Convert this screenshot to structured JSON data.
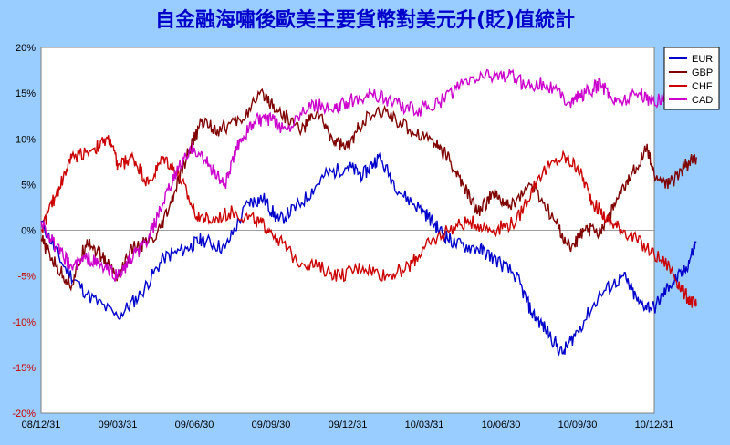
{
  "chart_data": {
    "type": "line",
    "title": "自金融海嘯後歐美主要貨幣對美元升(貶)值統計",
    "xlabel": "",
    "ylabel": "",
    "x_ticks": [
      "08/12/31",
      "09/03/31",
      "09/06/30",
      "09/09/30",
      "09/12/31",
      "10/03/31",
      "10/06/30",
      "10/09/30",
      "10/12/31"
    ],
    "y_ticks": [
      "20%",
      "15%",
      "10%",
      "5%",
      "0%",
      "-5%",
      "-10%",
      "-15%",
      "-20%"
    ],
    "ylim": [
      -20,
      20
    ],
    "grid": "horizontal-zero-line",
    "legend_position": "top-right",
    "series": [
      {
        "name": "EUR",
        "color": "#0000cc",
        "points": [
          [
            0,
            1
          ],
          [
            0.3,
            -4
          ],
          [
            0.6,
            -7
          ],
          [
            1.0,
            -9.5
          ],
          [
            1.3,
            -7
          ],
          [
            1.6,
            -3
          ],
          [
            1.9,
            -2
          ],
          [
            2.1,
            -1
          ],
          [
            2.4,
            -2
          ],
          [
            2.7,
            3
          ],
          [
            2.9,
            3.5
          ],
          [
            3.1,
            1
          ],
          [
            3.4,
            3
          ],
          [
            3.7,
            6
          ],
          [
            4.0,
            7
          ],
          [
            4.2,
            6
          ],
          [
            4.4,
            8
          ],
          [
            4.7,
            4
          ],
          [
            5.0,
            2
          ],
          [
            5.2,
            0
          ],
          [
            5.4,
            -1.5
          ],
          [
            5.7,
            -2
          ],
          [
            5.9,
            -3
          ],
          [
            6.2,
            -5
          ],
          [
            6.4,
            -9
          ],
          [
            6.6,
            -11
          ],
          [
            6.8,
            -13.5
          ],
          [
            7.0,
            -11
          ],
          [
            7.3,
            -7
          ],
          [
            7.6,
            -5
          ],
          [
            7.8,
            -8
          ],
          [
            8.0,
            -8.5
          ],
          [
            8.2,
            -6
          ],
          [
            8.4,
            -4.5
          ],
          [
            8.55,
            -1.3
          ]
        ]
      },
      {
        "name": "GBP",
        "color": "#800000",
        "points": [
          [
            0,
            -1
          ],
          [
            0.2,
            -4
          ],
          [
            0.4,
            -6
          ],
          [
            0.6,
            -1
          ],
          [
            0.8,
            -3
          ],
          [
            1.0,
            -5
          ],
          [
            1.2,
            -2
          ],
          [
            1.5,
            -1
          ],
          [
            1.7,
            3
          ],
          [
            1.9,
            8
          ],
          [
            2.1,
            12
          ],
          [
            2.3,
            11
          ],
          [
            2.6,
            12
          ],
          [
            2.9,
            15
          ],
          [
            3.1,
            13
          ],
          [
            3.4,
            11
          ],
          [
            3.6,
            13
          ],
          [
            3.8,
            10
          ],
          [
            4.0,
            9
          ],
          [
            4.2,
            12
          ],
          [
            4.5,
            13
          ],
          [
            4.8,
            11
          ],
          [
            5.1,
            10
          ],
          [
            5.3,
            8
          ],
          [
            5.5,
            5
          ],
          [
            5.7,
            2
          ],
          [
            5.9,
            4
          ],
          [
            6.1,
            2.5
          ],
          [
            6.4,
            5
          ],
          [
            6.7,
            1
          ],
          [
            6.9,
            -2
          ],
          [
            7.1,
            0
          ],
          [
            7.3,
            0
          ],
          [
            7.5,
            3
          ],
          [
            7.7,
            6
          ],
          [
            7.9,
            9
          ],
          [
            8.0,
            6
          ],
          [
            8.2,
            5
          ],
          [
            8.4,
            7
          ],
          [
            8.55,
            8
          ]
        ]
      },
      {
        "name": "CHF",
        "color": "#cc0000",
        "points": [
          [
            0,
            0
          ],
          [
            0.2,
            4
          ],
          [
            0.4,
            8
          ],
          [
            0.7,
            9
          ],
          [
            0.9,
            10
          ],
          [
            1.0,
            7
          ],
          [
            1.2,
            8
          ],
          [
            1.4,
            5
          ],
          [
            1.6,
            8
          ],
          [
            1.8,
            6
          ],
          [
            2.0,
            2
          ],
          [
            2.2,
            1
          ],
          [
            2.5,
            2
          ],
          [
            2.8,
            1
          ],
          [
            3.0,
            0
          ],
          [
            3.3,
            -3
          ],
          [
            3.6,
            -4
          ],
          [
            3.9,
            -5
          ],
          [
            4.2,
            -4
          ],
          [
            4.5,
            -5
          ],
          [
            4.8,
            -4
          ],
          [
            5.0,
            -2
          ],
          [
            5.3,
            0
          ],
          [
            5.6,
            1
          ],
          [
            5.9,
            0
          ],
          [
            6.2,
            1
          ],
          [
            6.5,
            6
          ],
          [
            6.8,
            8
          ],
          [
            7.0,
            7
          ],
          [
            7.2,
            3
          ],
          [
            7.4,
            1
          ],
          [
            7.6,
            0
          ],
          [
            7.9,
            -2
          ],
          [
            8.2,
            -4
          ],
          [
            8.4,
            -7
          ],
          [
            8.55,
            -8.3
          ]
        ]
      },
      {
        "name": "CAD",
        "color": "#cc00cc",
        "points": [
          [
            0,
            1
          ],
          [
            0.2,
            -2
          ],
          [
            0.4,
            -4
          ],
          [
            0.6,
            -3
          ],
          [
            0.8,
            -4
          ],
          [
            1.0,
            -5
          ],
          [
            1.2,
            -3
          ],
          [
            1.4,
            -1
          ],
          [
            1.6,
            3
          ],
          [
            1.8,
            7
          ],
          [
            2.0,
            9
          ],
          [
            2.2,
            7
          ],
          [
            2.4,
            5
          ],
          [
            2.6,
            10
          ],
          [
            2.8,
            12
          ],
          [
            3.0,
            12
          ],
          [
            3.2,
            11
          ],
          [
            3.5,
            14
          ],
          [
            3.8,
            13
          ],
          [
            4.0,
            14
          ],
          [
            4.3,
            15
          ],
          [
            4.6,
            14
          ],
          [
            4.9,
            13
          ],
          [
            5.2,
            14
          ],
          [
            5.5,
            16
          ],
          [
            5.8,
            17
          ],
          [
            6.1,
            17
          ],
          [
            6.3,
            16
          ],
          [
            6.6,
            16
          ],
          [
            6.9,
            14
          ],
          [
            7.1,
            15
          ],
          [
            7.3,
            16
          ],
          [
            7.5,
            14
          ],
          [
            7.8,
            15
          ],
          [
            8.0,
            14
          ],
          [
            8.2,
            15
          ],
          [
            8.4,
            16
          ],
          [
            8.55,
            16.3
          ]
        ]
      }
    ]
  }
}
